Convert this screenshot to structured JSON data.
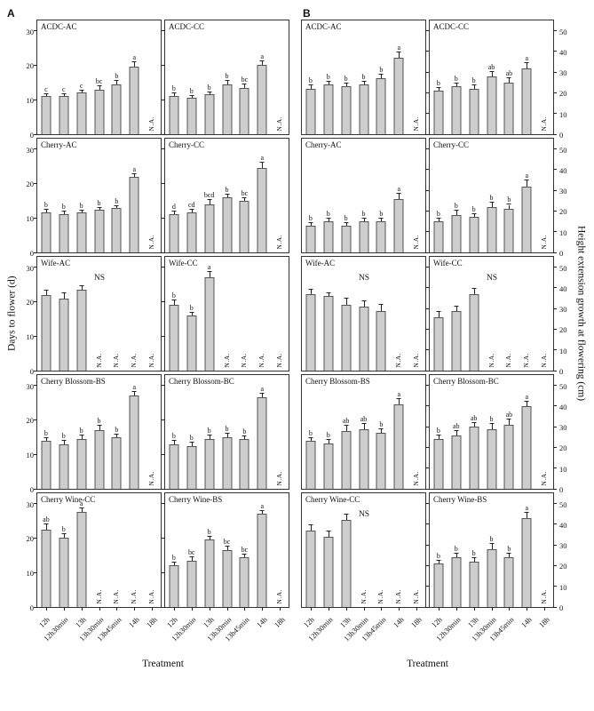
{
  "figure": {
    "panel_a_label": "A",
    "panel_b_label": "B",
    "a_y_label": "Days to flower (d)",
    "b_y_label": "Height extension growth at flowering (cm)",
    "x_title": "Treatment",
    "ns_label": "NS",
    "na_label": "N.A.",
    "bar_color": "#cdcdcd",
    "bar_border_color": "#555555",
    "treatments": [
      "12h",
      "12h30min",
      "13h",
      "13h30min",
      "13h45min",
      "14h",
      "18h"
    ]
  },
  "chart_data": [
    {
      "type": "bar",
      "panel": "A",
      "title": "ACDC-AC",
      "ns": false,
      "ylim": [
        0,
        33
      ],
      "yticks": [
        0,
        10,
        20,
        30
      ],
      "values": [
        11,
        11,
        12,
        13,
        14.5,
        19.5,
        null
      ],
      "errors": [
        0.7,
        0.7,
        0.7,
        0.9,
        1,
        1.5,
        null
      ],
      "letters": [
        "c",
        "c",
        "c",
        "bc",
        "b",
        "a",
        null
      ]
    },
    {
      "type": "bar",
      "panel": "A",
      "title": "ACDC-CC",
      "ns": false,
      "ylim": [
        0,
        33
      ],
      "yticks": [
        0,
        10,
        20,
        30
      ],
      "values": [
        11,
        10.5,
        11.5,
        14.5,
        13.5,
        20,
        null
      ],
      "errors": [
        0.8,
        0.5,
        0.7,
        1,
        1,
        1.2,
        null
      ],
      "letters": [
        "b",
        "b",
        "b",
        "b",
        "bc",
        "a",
        null
      ]
    },
    {
      "type": "bar",
      "panel": "A",
      "title": "Cherry-AC",
      "ns": false,
      "ylim": [
        0,
        33
      ],
      "yticks": [
        0,
        10,
        20,
        30
      ],
      "values": [
        11.5,
        11,
        11.5,
        12.5,
        13,
        22,
        null
      ],
      "errors": [
        0.8,
        0.8,
        0.5,
        0.5,
        0.5,
        0.8,
        null
      ],
      "letters": [
        "b",
        "b",
        "b",
        "b",
        "b",
        "a",
        null
      ]
    },
    {
      "type": "bar",
      "panel": "A",
      "title": "Cherry-CC",
      "ns": false,
      "ylim": [
        0,
        33
      ],
      "yticks": [
        0,
        10,
        20,
        30
      ],
      "values": [
        11,
        11.5,
        14,
        16,
        15,
        24.5,
        null
      ],
      "errors": [
        0.8,
        0.8,
        1.3,
        0.8,
        0.8,
        1.5,
        null
      ],
      "letters": [
        "d",
        "cd",
        "bcd",
        "b",
        "bc",
        "a",
        null
      ]
    },
    {
      "type": "bar",
      "panel": "A",
      "title": "Wife-AC",
      "ns": true,
      "ylim": [
        0,
        33
      ],
      "yticks": [
        0,
        10,
        20,
        30
      ],
      "values": [
        22,
        21,
        23.5,
        null,
        null,
        null,
        null
      ],
      "errors": [
        1.3,
        1.5,
        1,
        null,
        null,
        null,
        null
      ],
      "letters": [
        null,
        null,
        null,
        null,
        null,
        null,
        null
      ]
    },
    {
      "type": "bar",
      "panel": "A",
      "title": "Wife-CC",
      "ns": false,
      "ylim": [
        0,
        33
      ],
      "yticks": [
        0,
        10,
        20,
        30
      ],
      "values": [
        19,
        16,
        27,
        null,
        null,
        null,
        null
      ],
      "errors": [
        1.3,
        0.8,
        1.5,
        null,
        null,
        null,
        null
      ],
      "letters": [
        "b",
        "b",
        "a",
        null,
        null,
        null,
        null
      ]
    },
    {
      "type": "bar",
      "panel": "A",
      "title": "Cherry Blossom-BS",
      "ns": false,
      "ylim": [
        0,
        33
      ],
      "yticks": [
        0,
        10,
        20,
        30
      ],
      "values": [
        14,
        13,
        14.5,
        17,
        15,
        27,
        null
      ],
      "errors": [
        0.8,
        0.8,
        1,
        1.3,
        0.8,
        1,
        null
      ],
      "letters": [
        "b",
        "b",
        "b",
        "b",
        "b",
        "a",
        null
      ]
    },
    {
      "type": "bar",
      "panel": "A",
      "title": "Cherry Blossom-BC",
      "ns": false,
      "ylim": [
        0,
        33
      ],
      "yticks": [
        0,
        10,
        20,
        30
      ],
      "values": [
        13,
        12.5,
        14.5,
        15,
        14.5,
        26.5,
        null
      ],
      "errors": [
        0.8,
        0.8,
        1,
        1,
        0.8,
        1.2,
        null
      ],
      "letters": [
        "b",
        "b",
        "b",
        "b",
        "b",
        "a",
        null
      ]
    },
    {
      "type": "bar",
      "panel": "A",
      "title": "Cherry Wine-CC",
      "ns": false,
      "ylim": [
        0,
        33
      ],
      "yticks": [
        0,
        10,
        20,
        30
      ],
      "values": [
        22.5,
        20,
        27.5,
        null,
        null,
        null,
        null
      ],
      "errors": [
        1.5,
        1.2,
        1.2,
        null,
        null,
        null,
        null
      ],
      "letters": [
        "ab",
        "b",
        "a",
        null,
        null,
        null,
        null
      ]
    },
    {
      "type": "bar",
      "panel": "A",
      "title": "Cherry Wine-BS",
      "ns": false,
      "ylim": [
        0,
        33
      ],
      "yticks": [
        0,
        10,
        20,
        30
      ],
      "values": [
        12,
        13.5,
        19.5,
        16.5,
        14.5,
        27,
        null
      ],
      "errors": [
        0.8,
        1,
        1,
        1,
        0.8,
        0.8,
        null
      ],
      "letters": [
        "b",
        "bc",
        "b",
        "bc",
        "bc",
        "a",
        null
      ]
    },
    {
      "type": "bar",
      "panel": "B",
      "title": "ACDC-AC",
      "ns": false,
      "ylim": [
        0,
        55
      ],
      "yticks": [
        0,
        10,
        20,
        30,
        40,
        50
      ],
      "values": [
        22,
        24,
        23,
        24,
        27,
        37,
        null
      ],
      "errors": [
        1.5,
        1.5,
        1.5,
        1.5,
        2,
        2.5,
        null
      ],
      "letters": [
        "b",
        "b",
        "b",
        "b",
        "b",
        "a",
        null
      ]
    },
    {
      "type": "bar",
      "panel": "B",
      "title": "ACDC-CC",
      "ns": false,
      "ylim": [
        0,
        55
      ],
      "yticks": [
        0,
        10,
        20,
        30,
        40,
        50
      ],
      "values": [
        21,
        23,
        22,
        28,
        25,
        32,
        null
      ],
      "errors": [
        1.5,
        1.5,
        1.5,
        2,
        2,
        2.5,
        null
      ],
      "letters": [
        "b",
        "b",
        "b",
        "ab",
        "ab",
        "a",
        null
      ]
    },
    {
      "type": "bar",
      "panel": "B",
      "title": "Cherry-AC",
      "ns": false,
      "ylim": [
        0,
        55
      ],
      "yticks": [
        0,
        10,
        20,
        30,
        40,
        50
      ],
      "values": [
        13,
        15,
        13,
        15,
        15,
        26,
        null
      ],
      "errors": [
        1,
        1.5,
        1,
        1.5,
        1.5,
        2.5,
        null
      ],
      "letters": [
        "b",
        "b",
        "b",
        "b",
        "b",
        "a",
        null
      ]
    },
    {
      "type": "bar",
      "panel": "B",
      "title": "Cherry-CC",
      "ns": false,
      "ylim": [
        0,
        55
      ],
      "yticks": [
        0,
        10,
        20,
        30,
        40,
        50
      ],
      "values": [
        15,
        18,
        17,
        22,
        21,
        32,
        null
      ],
      "errors": [
        1.5,
        2,
        1.5,
        2,
        2,
        3,
        null
      ],
      "letters": [
        "b",
        "b",
        "b",
        "b",
        "b",
        "a",
        null
      ]
    },
    {
      "type": "bar",
      "panel": "B",
      "title": "Wife-AC",
      "ns": true,
      "ylim": [
        0,
        55
      ],
      "yticks": [
        0,
        10,
        20,
        30,
        40,
        50
      ],
      "values": [
        37,
        36,
        32,
        31,
        29,
        null,
        null
      ],
      "errors": [
        2,
        1.5,
        3,
        2.5,
        3,
        null,
        null
      ],
      "letters": [
        null,
        null,
        null,
        null,
        null,
        null,
        null
      ]
    },
    {
      "type": "bar",
      "panel": "B",
      "title": "Wife-CC",
      "ns": true,
      "ylim": [
        0,
        55
      ],
      "yticks": [
        0,
        10,
        20,
        30,
        40,
        50
      ],
      "values": [
        26,
        29,
        37,
        null,
        null,
        null,
        null
      ],
      "errors": [
        2.5,
        2,
        2.5,
        null,
        null,
        null,
        null
      ],
      "letters": [
        null,
        null,
        null,
        null,
        null,
        null,
        null
      ]
    },
    {
      "type": "bar",
      "panel": "B",
      "title": "Cherry Blossom-BS",
      "ns": false,
      "ylim": [
        0,
        55
      ],
      "yticks": [
        0,
        10,
        20,
        30,
        40,
        50
      ],
      "values": [
        23,
        22,
        28,
        29,
        27,
        41,
        null
      ],
      "errors": [
        1.5,
        1.5,
        2.5,
        2.5,
        2,
        2.5,
        null
      ],
      "letters": [
        "b",
        "b",
        "ab",
        "ab",
        "b",
        "a",
        null
      ]
    },
    {
      "type": "bar",
      "panel": "B",
      "title": "Cherry Blossom-BC",
      "ns": false,
      "ylim": [
        0,
        55
      ],
      "yticks": [
        0,
        10,
        20,
        30,
        40,
        50
      ],
      "values": [
        24,
        26,
        30,
        29,
        31,
        40,
        null
      ],
      "errors": [
        2,
        2,
        2,
        2.5,
        2.5,
        2,
        null
      ],
      "letters": [
        "b",
        "ab",
        "ab",
        "b",
        "ab",
        "a",
        null
      ]
    },
    {
      "type": "bar",
      "panel": "B",
      "title": "Cherry Wine-CC",
      "ns": true,
      "ylim": [
        0,
        55
      ],
      "yticks": [
        0,
        10,
        20,
        30,
        40,
        50
      ],
      "values": [
        37,
        34,
        42,
        null,
        null,
        null,
        null
      ],
      "errors": [
        2.5,
        2.5,
        2.5,
        null,
        null,
        null,
        null
      ],
      "letters": [
        null,
        null,
        null,
        null,
        null,
        null,
        null
      ]
    },
    {
      "type": "bar",
      "panel": "B",
      "title": "Cherry Wine-BS",
      "ns": false,
      "ylim": [
        0,
        55
      ],
      "yticks": [
        0,
        10,
        20,
        30,
        40,
        50
      ],
      "values": [
        21,
        24,
        22,
        28,
        24,
        43,
        null
      ],
      "errors": [
        1.5,
        2,
        1.5,
        2.5,
        2,
        2.5,
        null
      ],
      "letters": [
        "b",
        "b",
        "b",
        "b",
        "b",
        "a",
        null
      ]
    }
  ]
}
